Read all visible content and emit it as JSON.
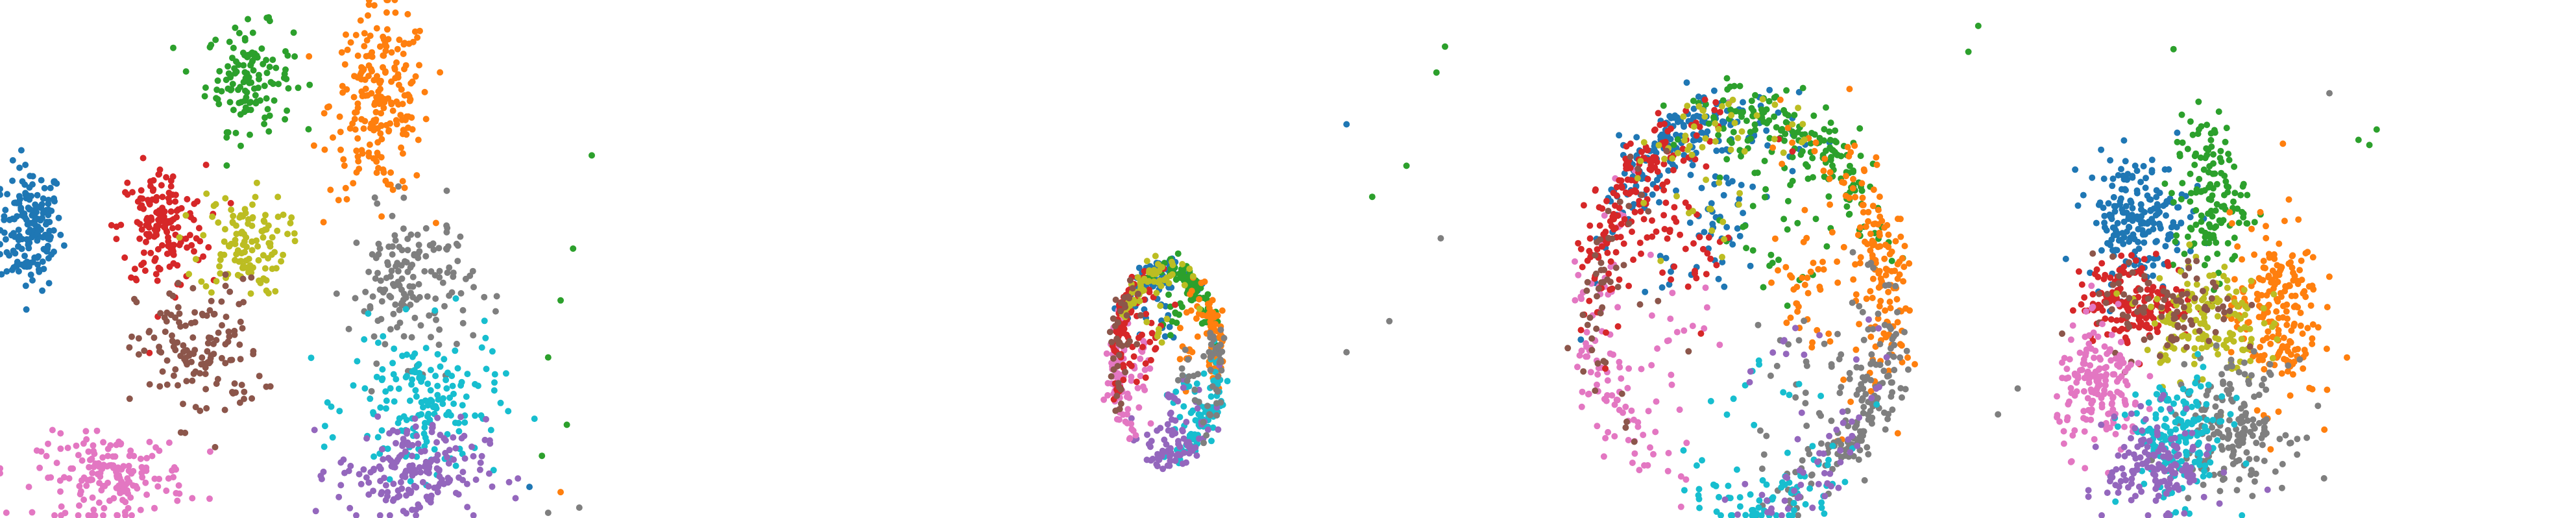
{
  "palette": {
    "blue": "#1f77b4",
    "orange": "#ff7f0e",
    "green": "#2ca02c",
    "red": "#d62728",
    "purple": "#9467bd",
    "brown": "#8c564b",
    "pink": "#e377c2",
    "gray": "#7f7f7f",
    "olive": "#bcbd22",
    "cyan": "#17becf"
  },
  "chart_data": [
    {
      "type": "scatter",
      "title": "",
      "axes_visible": false,
      "grid": false,
      "xlim": [
        0,
        100
      ],
      "ylim": [
        0,
        100
      ],
      "clusters": [
        {
          "color": "blue",
          "cx": 5,
          "cy": 56,
          "sx": 2.5,
          "sy": 6,
          "n": 170
        },
        {
          "color": "green",
          "cx": 40,
          "cy": 85,
          "sx": 3.5,
          "sy": 5,
          "n": 130
        },
        {
          "color": "orange",
          "cx": 61,
          "cy": 80,
          "sx": 4,
          "sy": 9,
          "n": 220
        },
        {
          "color": "red",
          "cx": 26,
          "cy": 56,
          "sx": 3.5,
          "sy": 6,
          "n": 160
        },
        {
          "color": "olive",
          "cx": 39,
          "cy": 53,
          "sx": 3.5,
          "sy": 5,
          "n": 120
        },
        {
          "color": "brown",
          "cx": 32,
          "cy": 32,
          "sx": 5,
          "sy": 7,
          "n": 140
        },
        {
          "color": "pink",
          "cx": 18,
          "cy": 8,
          "sx": 6,
          "sy": 4,
          "n": 170
        },
        {
          "color": "gray",
          "cx": 66,
          "cy": 45,
          "sx": 5,
          "sy": 7,
          "n": 160
        },
        {
          "color": "cyan",
          "cx": 68,
          "cy": 22,
          "sx": 6,
          "sy": 7,
          "n": 170
        },
        {
          "color": "purple",
          "cx": 66,
          "cy": 9,
          "sx": 6,
          "sy": 5,
          "n": 180
        }
      ],
      "strays": [
        {
          "color": "green",
          "x": 95,
          "y": 70
        },
        {
          "color": "green",
          "x": 92,
          "y": 52
        },
        {
          "color": "green",
          "x": 90,
          "y": 42
        },
        {
          "color": "green",
          "x": 88,
          "y": 31
        },
        {
          "color": "green",
          "x": 91,
          "y": 18
        },
        {
          "color": "green",
          "x": 87,
          "y": 12
        },
        {
          "color": "gray",
          "x": 93,
          "y": 2
        },
        {
          "color": "gray",
          "x": 88,
          "y": 1
        },
        {
          "color": "orange",
          "x": 90,
          "y": 5
        },
        {
          "color": "blue",
          "x": 85,
          "y": 6
        }
      ]
    },
    {
      "type": "scatter",
      "title": "",
      "axes_visible": false,
      "grid": false,
      "xlim": [
        0,
        100
      ],
      "ylim": [
        0,
        100
      ],
      "ring": {
        "cx": 30,
        "cy": 30,
        "rx": 12,
        "ry": 18
      },
      "clusters": [
        {
          "color": "blue",
          "angle": 95,
          "n": 70
        },
        {
          "color": "green",
          "angle": 60,
          "n": 80
        },
        {
          "color": "orange",
          "angle": 20,
          "n": 80
        },
        {
          "color": "cyan",
          "angle": -40,
          "n": 90
        },
        {
          "color": "purple",
          "angle": -80,
          "n": 90
        },
        {
          "color": "pink",
          "angle": 190,
          "n": 100
        },
        {
          "color": "red",
          "angle": 150,
          "n": 100
        },
        {
          "color": "olive",
          "angle": 110,
          "n": 60
        },
        {
          "color": "gray",
          "angle": -10,
          "n": 50
        },
        {
          "color": "brown",
          "angle": 170,
          "n": 40
        }
      ],
      "strays": [
        {
          "color": "green",
          "x": 95,
          "y": 91
        },
        {
          "color": "green",
          "x": 93,
          "y": 86
        },
        {
          "color": "blue",
          "x": 72,
          "y": 76
        },
        {
          "color": "green",
          "x": 86,
          "y": 68
        },
        {
          "color": "green",
          "x": 78,
          "y": 62
        },
        {
          "color": "gray",
          "x": 94,
          "y": 54
        },
        {
          "color": "gray",
          "x": 82,
          "y": 38
        },
        {
          "color": "gray",
          "x": 72,
          "y": 32
        }
      ]
    },
    {
      "type": "scatter",
      "title": "",
      "axes_visible": false,
      "grid": false,
      "xlim": [
        0,
        100
      ],
      "ylim": [
        0,
        100
      ],
      "ring": {
        "cx": 40,
        "cy": 40,
        "rx": 30,
        "ry": 38
      },
      "clusters": [
        {
          "color": "blue",
          "angle": 115,
          "n": 220
        },
        {
          "color": "green",
          "angle": 65,
          "n": 200
        },
        {
          "color": "orange",
          "angle": 15,
          "n": 200
        },
        {
          "color": "gray",
          "angle": -35,
          "n": 180
        },
        {
          "color": "cyan",
          "angle": -80,
          "n": 90
        },
        {
          "color": "purple",
          "angle": -55,
          "n": 60
        },
        {
          "color": "pink",
          "angle": 200,
          "n": 120
        },
        {
          "color": "red",
          "angle": 140,
          "n": 200
        },
        {
          "color": "olive",
          "angle": 100,
          "n": 60
        },
        {
          "color": "brown",
          "angle": 170,
          "n": 50
        }
      ],
      "strays": [
        {
          "color": "green",
          "x": 88,
          "y": 95
        },
        {
          "color": "green",
          "x": 86,
          "y": 90
        },
        {
          "color": "gray",
          "x": 96,
          "y": 25
        },
        {
          "color": "gray",
          "x": 92,
          "y": 20
        }
      ]
    },
    {
      "type": "scatter",
      "title": "",
      "axes_visible": false,
      "grid": false,
      "xlim": [
        0,
        100
      ],
      "ylim": [
        0,
        100
      ],
      "clusters": [
        {
          "color": "blue",
          "cx": 22,
          "cy": 58,
          "sx": 7,
          "sy": 6,
          "n": 200
        },
        {
          "color": "green",
          "cx": 42,
          "cy": 62,
          "sx": 5,
          "sy": 8,
          "n": 140
        },
        {
          "color": "orange",
          "cx": 60,
          "cy": 40,
          "sx": 6,
          "sy": 9,
          "n": 200
        },
        {
          "color": "red",
          "cx": 22,
          "cy": 42,
          "sx": 8,
          "sy": 4,
          "n": 160
        },
        {
          "color": "olive",
          "cx": 40,
          "cy": 38,
          "sx": 8,
          "sy": 6,
          "n": 150
        },
        {
          "color": "brown",
          "cx": 30,
          "cy": 40,
          "sx": 10,
          "sy": 5,
          "n": 90
        },
        {
          "color": "pink",
          "cx": 12,
          "cy": 25,
          "sx": 6,
          "sy": 6,
          "n": 170
        },
        {
          "color": "gray",
          "cx": 48,
          "cy": 18,
          "sx": 8,
          "sy": 6,
          "n": 180
        },
        {
          "color": "cyan",
          "cx": 33,
          "cy": 15,
          "sx": 7,
          "sy": 6,
          "n": 170
        },
        {
          "color": "purple",
          "cx": 28,
          "cy": 10,
          "sx": 7,
          "sy": 5,
          "n": 150
        }
      ],
      "strays": [
        {
          "color": "green",
          "x": 88,
          "y": 75
        },
        {
          "color": "green",
          "x": 86,
          "y": 72
        },
        {
          "color": "green",
          "x": 83,
          "y": 73
        },
        {
          "color": "gray",
          "x": 75,
          "y": 82
        }
      ]
    }
  ]
}
